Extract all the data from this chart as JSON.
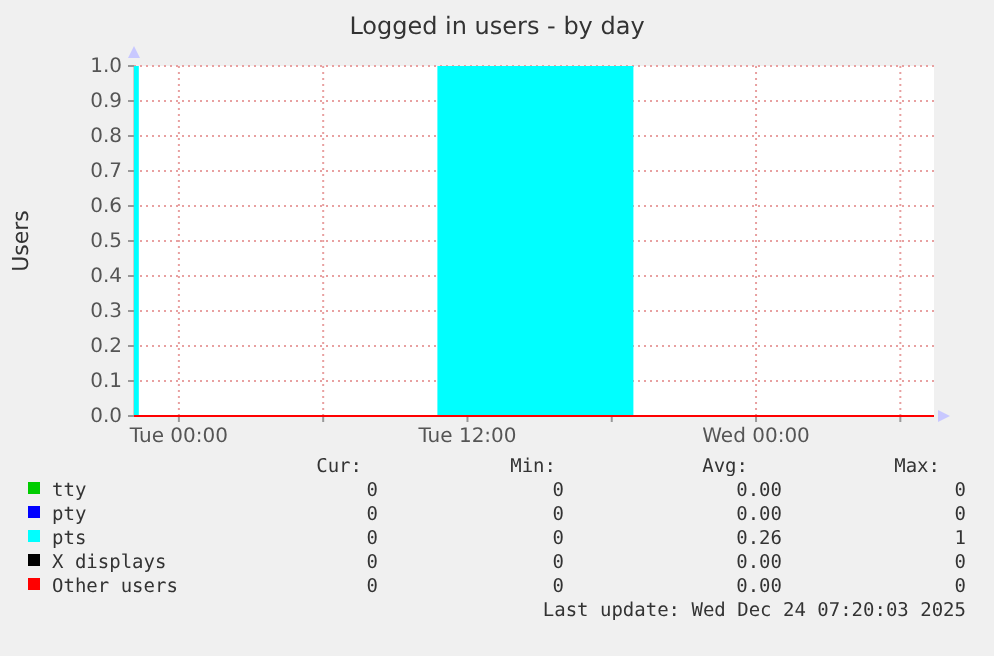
{
  "chart_data": {
    "type": "area",
    "title": "Logged in users - by day",
    "ylabel": "Users",
    "xlim": [
      "2025-12-22T22:08",
      "2025-12-24T07:24"
    ],
    "xticks": [
      {
        "value": "2025-12-23T00:00",
        "label": "Tue 00:00"
      },
      {
        "value": "2025-12-23T06:00",
        "label": null
      },
      {
        "value": "2025-12-23T12:00",
        "label": "Tue 12:00"
      },
      {
        "value": "2025-12-23T18:00",
        "label": null
      },
      {
        "value": "2025-12-24T00:00",
        "label": "Wed 00:00"
      },
      {
        "value": "2025-12-24T06:00",
        "label": null
      }
    ],
    "ylim": [
      0,
      1
    ],
    "yticks": [
      {
        "value": 0,
        "label": "0.0"
      },
      {
        "value": 0.1,
        "label": "0.1"
      },
      {
        "value": 0.2,
        "label": "0.2"
      },
      {
        "value": 0.3,
        "label": "0.3"
      },
      {
        "value": 0.4,
        "label": "0.4"
      },
      {
        "value": 0.5,
        "label": "0.5"
      },
      {
        "value": 0.6,
        "label": "0.6"
      },
      {
        "value": 0.7,
        "label": "0.7"
      },
      {
        "value": 0.8,
        "label": "0.8"
      },
      {
        "value": 0.9,
        "label": "0.9"
      },
      {
        "value": 1,
        "label": "1.0"
      }
    ],
    "grid": true,
    "legend": "bottom",
    "series": [
      {
        "name": "tty",
        "color": "#00cc00"
      },
      {
        "name": "pty",
        "color": "#0000ff"
      },
      {
        "name": "pts",
        "color": "#00ffff",
        "x": [
          "2025-12-22T22:08",
          "2025-12-22T22:20",
          "2025-12-22T22:20",
          "2025-12-23T10:45",
          "2025-12-23T10:45",
          "2025-12-23T18:54",
          "2025-12-23T18:54",
          "2025-12-24T07:24"
        ],
        "values": [
          1,
          1,
          0,
          0,
          1,
          1,
          0,
          0
        ]
      },
      {
        "name": "X displays",
        "color": "#000000"
      },
      {
        "name": "Other users",
        "type": "line",
        "color": "#ff0000",
        "x": [
          "2025-12-22T22:08",
          "2025-12-24T07:24"
        ],
        "values": [
          0,
          0
        ]
      }
    ],
    "annotations": [
      "Cur:",
      "Min:",
      "Avg:",
      "Max:",
      "0",
      "0",
      "0.00",
      "0",
      "0",
      "0",
      "0.00",
      "0",
      "0",
      "0",
      "0.26",
      "1",
      "0",
      "0",
      "0.00",
      "0",
      "0",
      "0",
      "0.00",
      "0",
      "Last update: Wed Dec 24 07:20:03 2025"
    ]
  }
}
